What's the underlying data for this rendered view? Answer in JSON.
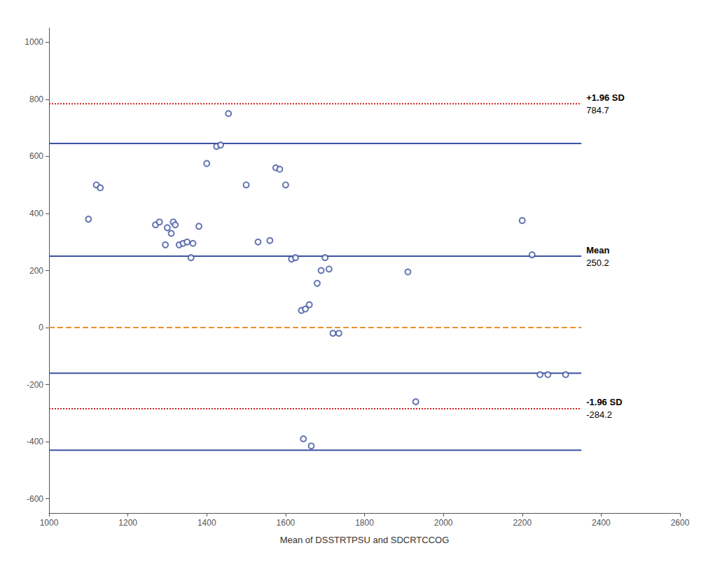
{
  "chart_data": {
    "type": "scatter",
    "xlabel": "Mean of DSSTRTPSU and SDCRTCCOG",
    "xlim": [
      1000,
      2600
    ],
    "ylim": [
      -650,
      1050
    ],
    "xticks": [
      1000,
      1200,
      1400,
      1600,
      1800,
      2000,
      2200,
      2400,
      2600
    ],
    "yticks": [
      -600,
      -400,
      -200,
      0,
      200,
      400,
      600,
      800,
      1000
    ],
    "grid": false,
    "series": [
      {
        "type": "scatter",
        "color": "#3d52a0",
        "marker": "open_circle",
        "x": [
          1100,
          1120,
          1130,
          1270,
          1280,
          1295,
          1300,
          1310,
          1315,
          1320,
          1330,
          1340,
          1350,
          1360,
          1365,
          1380,
          1400,
          1425,
          1435,
          1455,
          1500,
          1530,
          1560,
          1575,
          1585,
          1600,
          1615,
          1625,
          1640,
          1650,
          1660,
          1680,
          1690,
          1700,
          1710,
          1720,
          1735,
          1910,
          1930,
          2200,
          2225,
          2265,
          2310
        ],
        "values": [
          380,
          500,
          490,
          360,
          370,
          290,
          350,
          330,
          370,
          360,
          290,
          295,
          300,
          245,
          295,
          355,
          575,
          635,
          640,
          750,
          500,
          300,
          305,
          560,
          555,
          500,
          240,
          245,
          60,
          65,
          80,
          155,
          200,
          245,
          205,
          -20,
          -20,
          195,
          -260,
          375,
          255,
          -165,
          -165
        ]
      },
      {
        "type": "scatter",
        "color": "#3d52a0",
        "marker": "open_circle",
        "x": [
          1645,
          1665,
          2245
        ],
        "values": [
          -390,
          -415,
          -165
        ]
      },
      {
        "type": "line",
        "color": "#e8922e",
        "line_style": "dashed",
        "x": [
          1000,
          2350
        ],
        "values": [
          0,
          0
        ]
      },
      {
        "type": "line",
        "color": "#3d52a0",
        "line_style": "solid",
        "x": [
          1000,
          2350
        ],
        "values": [
          250.2,
          250.2
        ],
        "label": "Mean",
        "value_label": "250.2"
      },
      {
        "type": "line",
        "color": "#cc2222",
        "line_style": "dotted",
        "x": [
          1000,
          2350
        ],
        "values": [
          784.7,
          784.7
        ],
        "label": "+1.96 SD",
        "value_label": "784.7"
      },
      {
        "type": "line",
        "color": "#cc2222",
        "line_style": "dotted",
        "x": [
          1000,
          2350
        ],
        "values": [
          -284.2,
          -284.2
        ],
        "label": "-1.96 SD",
        "value_label": "-284.2"
      },
      {
        "type": "line",
        "color": "#3d52a0",
        "line_style": "solid",
        "x": [
          1000,
          2350
        ],
        "values": [
          645,
          645
        ]
      },
      {
        "type": "line",
        "color": "#3d52a0",
        "line_style": "solid",
        "x": [
          1000,
          2350
        ],
        "values": [
          -160,
          -160
        ]
      },
      {
        "type": "line",
        "color": "#3d52a0",
        "line_style": "solid",
        "x": [
          1000,
          2350
        ],
        "values": [
          -430,
          -430
        ]
      }
    ]
  }
}
